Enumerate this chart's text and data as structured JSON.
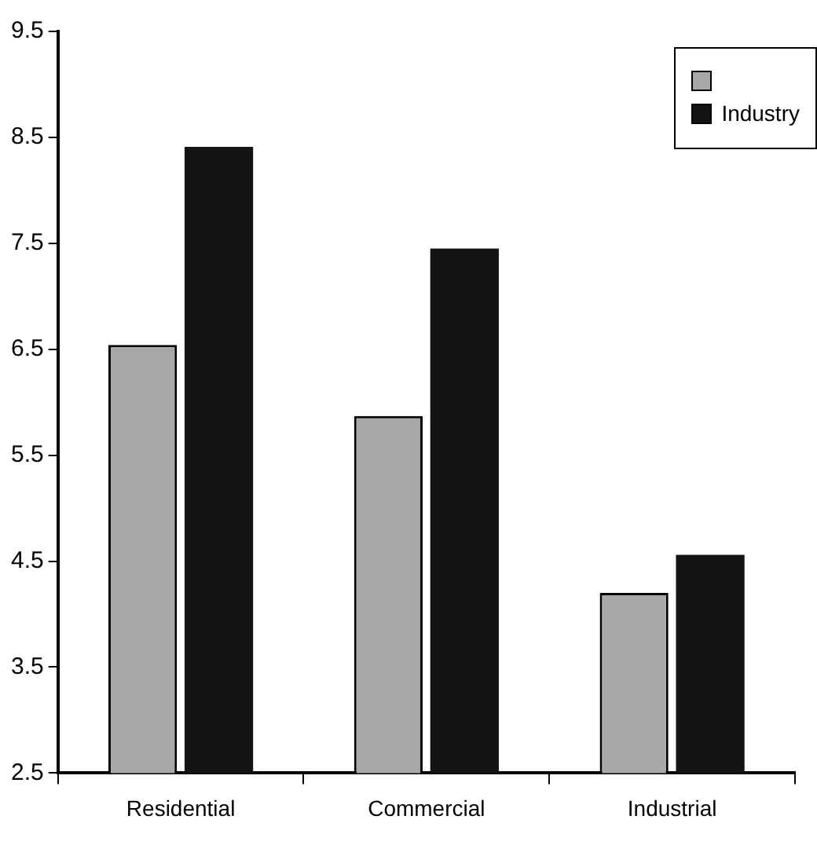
{
  "chart_data": {
    "type": "bar",
    "categories": [
      "Residential",
      "Commercial",
      "Industrial"
    ],
    "series": [
      {
        "color": "#a8a8a8",
        "values": [
          6.54,
          5.87,
          4.2
        ]
      },
      {
        "name": "Industry",
        "color": "#141414",
        "values": [
          8.41,
          7.45,
          4.56
        ]
      }
    ],
    "ylim": [
      2.5,
      9.5
    ],
    "yticks": [
      2.5,
      3.5,
      4.5,
      5.5,
      6.5,
      7.5,
      8.5,
      9.5
    ],
    "grid": false,
    "legend": "top right"
  }
}
